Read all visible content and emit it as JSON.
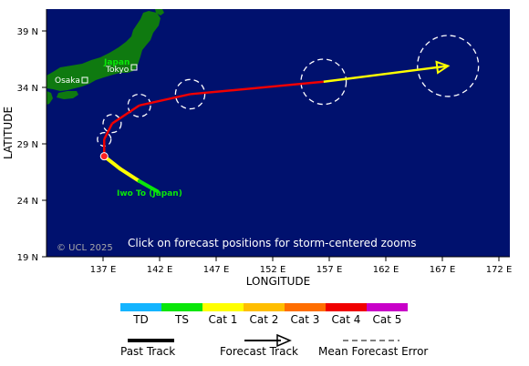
{
  "map": {
    "background": "#00116e",
    "land_color": "#0f7a10",
    "instruction": "Click on forecast positions for storm-centered zooms",
    "copyright": "© UCL 2025",
    "xlabel": "LONGITUDE",
    "ylabel": "LATITUDE",
    "x_ticks": [
      "137 E",
      "142 E",
      "147 E",
      "152 E",
      "157 E",
      "162 E",
      "167 E",
      "172 E"
    ],
    "y_ticks": [
      "39 N",
      "34 N",
      "29 N",
      "24 N",
      "19 N"
    ],
    "places": {
      "japan": "Japan",
      "tokyo": "Tokyo",
      "osaka": "Osaka",
      "iwo_to": "Iwo To (Japan)"
    }
  },
  "storm": {
    "current_position": {
      "lon": 137.1,
      "lat": 27.9
    },
    "past_track": [
      {
        "lon": 137.1,
        "lat": 27.9,
        "category": "Cat 1"
      },
      {
        "lon": 138.5,
        "lat": 26.8,
        "category": "Cat 1"
      },
      {
        "lon": 140.2,
        "lat": 25.7,
        "category": "Cat 1"
      },
      {
        "lon": 140.9,
        "lat": 25.3,
        "category": "TS"
      },
      {
        "lon": 141.8,
        "lat": 24.8,
        "category": "TS"
      }
    ],
    "forecast_track": [
      {
        "lon": 137.1,
        "lat": 27.9,
        "category": "Cat 4",
        "error_radius_deg": 0
      },
      {
        "lon": 137.1,
        "lat": 29.4,
        "category": "Cat 4",
        "error_radius_deg": 0.6
      },
      {
        "lon": 137.8,
        "lat": 30.8,
        "category": "Cat 4",
        "error_radius_deg": 0.8
      },
      {
        "lon": 140.2,
        "lat": 32.4,
        "category": "Cat 4",
        "error_radius_deg": 1.0
      },
      {
        "lon": 144.7,
        "lat": 33.4,
        "category": "Cat 4",
        "error_radius_deg": 1.3
      },
      {
        "lon": 156.5,
        "lat": 34.5,
        "category": "Cat 4",
        "error_radius_deg": 2.0
      },
      {
        "lon": 167.5,
        "lat": 35.9,
        "category": "Cat 1",
        "error_radius_deg": 2.7
      }
    ]
  },
  "legend": {
    "categories": [
      {
        "label": "TD",
        "color": "#14b4ff"
      },
      {
        "label": "TS",
        "color": "#0ae60a"
      },
      {
        "label": "Cat 1",
        "color": "#ffff00"
      },
      {
        "label": "Cat 2",
        "color": "#ffbe00"
      },
      {
        "label": "Cat 3",
        "color": "#ff6e00"
      },
      {
        "label": "Cat 4",
        "color": "#f00000"
      },
      {
        "label": "Cat 5",
        "color": "#c800c8"
      }
    ],
    "past_track_label": "Past Track",
    "forecast_track_label": "Forecast Track",
    "error_label": "Mean Forecast Error"
  }
}
